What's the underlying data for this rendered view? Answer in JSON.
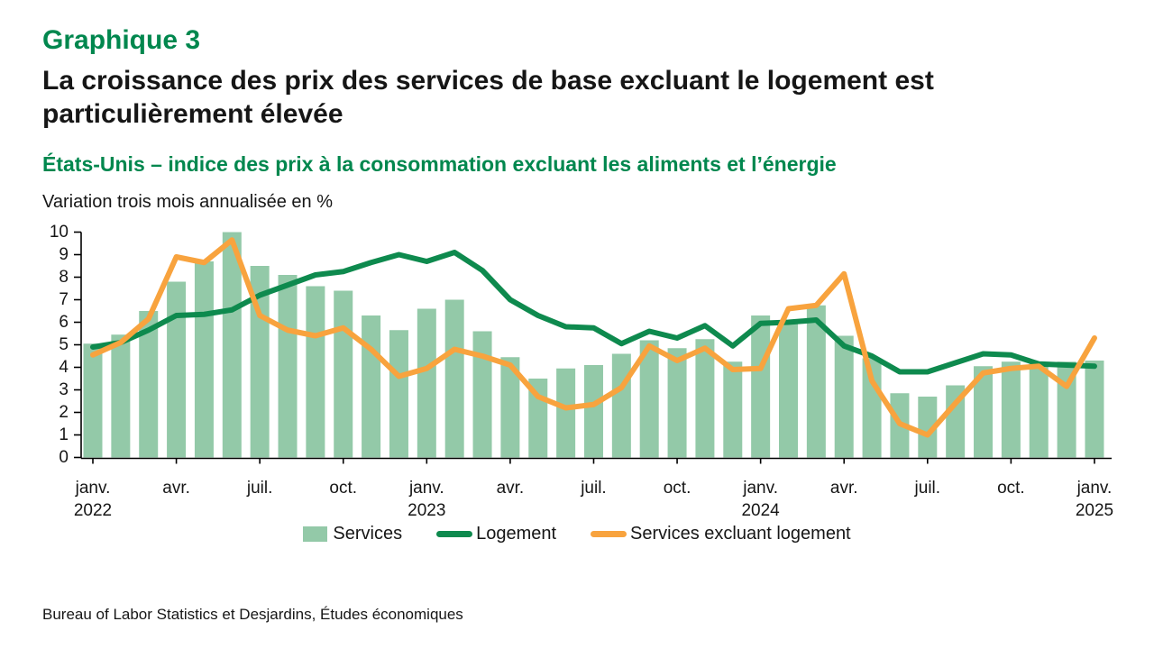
{
  "header": {
    "graphique_label": "Graphique 3",
    "title": "La croissance des prix des services de base excluant le logement est particulièrement élevée",
    "subtitle": "États-Unis – indice des prix à la consommation excluant les aliments et l’énergie",
    "unit_note": "Variation trois mois annualisée en %"
  },
  "source_line": "Bureau of Labor Statistics et Desjardins, Études économiques",
  "colors": {
    "title_green": "#00874e",
    "text_black": "#161616",
    "bar_green": "#93c9a8",
    "line_green": "#0e8a4e",
    "line_orange": "#f8a33e",
    "axis_black": "#000000"
  },
  "chart_data": {
    "type": "bar+line",
    "title": "États-Unis – indice des prix à la consommation excluant les aliments et l’énergie",
    "ylabel": "Variation trois mois annualisée en %",
    "ylim": [
      0,
      10
    ],
    "yticks": [
      0,
      1,
      2,
      3,
      4,
      5,
      6,
      7,
      8,
      9,
      10
    ],
    "grid": false,
    "legend_position": "bottom-center",
    "months": [
      "2022-01",
      "2022-02",
      "2022-03",
      "2022-04",
      "2022-05",
      "2022-06",
      "2022-07",
      "2022-08",
      "2022-09",
      "2022-10",
      "2022-11",
      "2022-12",
      "2023-01",
      "2023-02",
      "2023-03",
      "2023-04",
      "2023-05",
      "2023-06",
      "2023-07",
      "2023-08",
      "2023-09",
      "2023-10",
      "2023-11",
      "2023-12",
      "2024-01",
      "2024-02",
      "2024-03",
      "2024-04",
      "2024-05",
      "2024-06",
      "2024-07",
      "2024-08",
      "2024-09",
      "2024-10",
      "2024-11",
      "2024-12",
      "2025-01"
    ],
    "x_tick_labels": [
      {
        "i": 0,
        "label": "janv.",
        "year": "2022"
      },
      {
        "i": 3,
        "label": "avr."
      },
      {
        "i": 6,
        "label": "juil."
      },
      {
        "i": 9,
        "label": "oct."
      },
      {
        "i": 12,
        "label": "janv.",
        "year": "2023"
      },
      {
        "i": 15,
        "label": "avr."
      },
      {
        "i": 18,
        "label": "juil."
      },
      {
        "i": 21,
        "label": "oct."
      },
      {
        "i": 24,
        "label": "janv.",
        "year": "2024"
      },
      {
        "i": 27,
        "label": "avr."
      },
      {
        "i": 30,
        "label": "juil."
      },
      {
        "i": 33,
        "label": "oct."
      },
      {
        "i": 36,
        "label": "janv.",
        "year": "2025"
      }
    ],
    "series": [
      {
        "name": "Services",
        "type": "bar",
        "color": "#93c9a8",
        "values": [
          5.05,
          5.45,
          6.5,
          7.8,
          8.7,
          10.0,
          8.5,
          8.1,
          7.6,
          7.4,
          6.3,
          5.65,
          6.6,
          7.0,
          5.6,
          4.45,
          3.5,
          3.95,
          4.1,
          4.6,
          5.2,
          4.85,
          5.25,
          4.25,
          6.3,
          6.1,
          6.75,
          5.4,
          4.4,
          2.85,
          2.7,
          3.2,
          4.05,
          4.25,
          4.2,
          4.25,
          4.3
        ]
      },
      {
        "name": "Logement",
        "type": "line",
        "color": "#0e8a4e",
        "values": [
          4.9,
          5.1,
          5.65,
          6.3,
          6.35,
          6.55,
          7.2,
          7.65,
          8.1,
          8.25,
          8.65,
          9.0,
          8.7,
          9.1,
          8.3,
          7.0,
          6.3,
          5.8,
          5.75,
          5.05,
          5.6,
          5.3,
          5.85,
          4.95,
          5.95,
          6.0,
          6.1,
          4.95,
          4.5,
          3.8,
          3.8,
          4.2,
          4.6,
          4.55,
          4.15,
          4.1,
          4.05
        ]
      },
      {
        "name": "Services excluant logement",
        "type": "line",
        "color": "#f8a33e",
        "values": [
          4.55,
          5.1,
          6.15,
          8.9,
          8.65,
          9.65,
          6.3,
          5.65,
          5.4,
          5.75,
          4.8,
          3.6,
          3.95,
          4.8,
          4.5,
          4.1,
          2.7,
          2.2,
          2.35,
          3.1,
          4.95,
          4.3,
          4.85,
          3.9,
          3.95,
          6.6,
          6.75,
          8.15,
          3.4,
          1.5,
          1.0,
          2.4,
          3.75,
          3.95,
          4.05,
          3.15,
          5.3
        ]
      }
    ]
  },
  "legend": {
    "items": [
      {
        "label": "Services",
        "marker": "square",
        "color": "#93c9a8"
      },
      {
        "label": "Logement",
        "marker": "line",
        "color": "#0e8a4e"
      },
      {
        "label": "Services excluant logement",
        "marker": "line",
        "color": "#f8a33e"
      }
    ]
  }
}
